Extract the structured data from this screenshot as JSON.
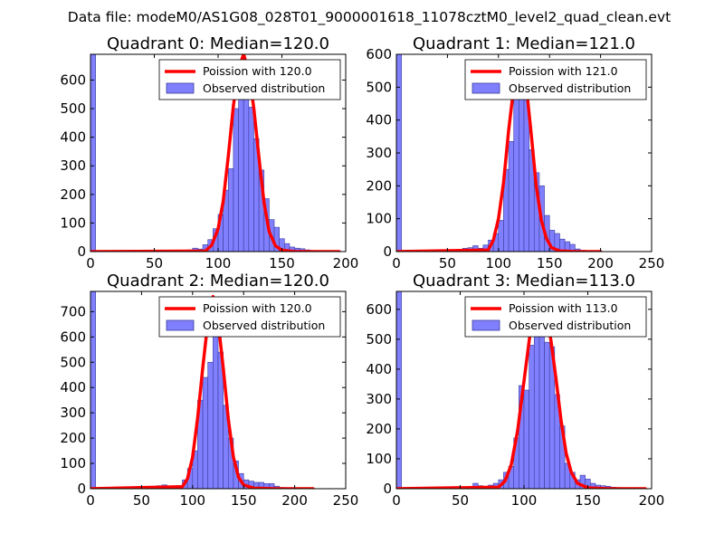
{
  "figure": {
    "suptitle": "Data file: modeM0/AS1G08_028T01_9000001618_11078cztM0_level2_quad_clean.evt"
  },
  "colors": {
    "bars_fill": "#8080ff",
    "bars_edge": "#3a3a9a",
    "curve": "#ff0000",
    "axes": "#000000",
    "background": "#ffffff"
  },
  "chart_data": [
    {
      "type": "bar",
      "title": "Quadrant 0: Median=120.0",
      "xlim": [
        0,
        200
      ],
      "ylim": [
        0,
        690
      ],
      "xticks": [
        0,
        50,
        100,
        150,
        200
      ],
      "yticks": [
        0,
        100,
        200,
        300,
        400,
        500,
        600
      ],
      "xtick_labels": [
        "0",
        "50",
        "100",
        "150",
        "200"
      ],
      "ytick_labels": [
        "0",
        "100",
        "200",
        "300",
        "400",
        "500",
        "600"
      ],
      "legend": {
        "position": "upper-right",
        "curve_label": "Poission with 120.0",
        "bars_label": "Observed distribution"
      },
      "bin_width": 4,
      "bins": [
        {
          "x": 0,
          "y": 690
        },
        {
          "x": 76,
          "y": 6
        },
        {
          "x": 80,
          "y": 12
        },
        {
          "x": 84,
          "y": 9
        },
        {
          "x": 88,
          "y": 24
        },
        {
          "x": 92,
          "y": 42
        },
        {
          "x": 96,
          "y": 80
        },
        {
          "x": 100,
          "y": 130
        },
        {
          "x": 104,
          "y": 215
        },
        {
          "x": 108,
          "y": 290
        },
        {
          "x": 112,
          "y": 500
        },
        {
          "x": 116,
          "y": 535
        },
        {
          "x": 120,
          "y": 560
        },
        {
          "x": 124,
          "y": 505
        },
        {
          "x": 128,
          "y": 395
        },
        {
          "x": 132,
          "y": 285
        },
        {
          "x": 136,
          "y": 185
        },
        {
          "x": 140,
          "y": 112
        },
        {
          "x": 144,
          "y": 85
        },
        {
          "x": 148,
          "y": 45
        },
        {
          "x": 152,
          "y": 28
        },
        {
          "x": 156,
          "y": 16
        },
        {
          "x": 160,
          "y": 12
        },
        {
          "x": 164,
          "y": 10
        },
        {
          "x": 168,
          "y": 6
        },
        {
          "x": 172,
          "y": 4
        }
      ],
      "curve": {
        "x": [
          0,
          90,
          95,
          100,
          104,
          108,
          112,
          116,
          120,
          124,
          128,
          132,
          136,
          140,
          145,
          150,
          160,
          175,
          195
        ],
        "y": [
          0,
          2,
          22,
          80,
          175,
          335,
          510,
          640,
          690,
          630,
          500,
          330,
          170,
          70,
          20,
          5,
          0,
          0,
          0
        ]
      }
    },
    {
      "type": "bar",
      "title": "Quadrant 1: Median=121.0",
      "xlim": [
        0,
        250
      ],
      "ylim": [
        0,
        600
      ],
      "xticks": [
        0,
        50,
        100,
        150,
        200,
        250
      ],
      "yticks": [
        0,
        100,
        200,
        300,
        400,
        500,
        600
      ],
      "xtick_labels": [
        "0",
        "50",
        "100",
        "150",
        "200",
        "250"
      ],
      "ytick_labels": [
        "0",
        "100",
        "200",
        "300",
        "400",
        "500",
        "600"
      ],
      "legend": {
        "position": "upper-right",
        "curve_label": "Poission with 121.0",
        "bars_label": "Observed distribution"
      },
      "bin_width": 5,
      "bins": [
        {
          "x": 0,
          "y": 600
        },
        {
          "x": 60,
          "y": 5
        },
        {
          "x": 65,
          "y": 10
        },
        {
          "x": 70,
          "y": 12
        },
        {
          "x": 75,
          "y": 18
        },
        {
          "x": 80,
          "y": 10
        },
        {
          "x": 85,
          "y": 20
        },
        {
          "x": 90,
          "y": 35
        },
        {
          "x": 95,
          "y": 55
        },
        {
          "x": 100,
          "y": 95
        },
        {
          "x": 105,
          "y": 250
        },
        {
          "x": 110,
          "y": 335
        },
        {
          "x": 115,
          "y": 525
        },
        {
          "x": 120,
          "y": 535
        },
        {
          "x": 125,
          "y": 520
        },
        {
          "x": 130,
          "y": 310
        },
        {
          "x": 135,
          "y": 240
        },
        {
          "x": 140,
          "y": 200
        },
        {
          "x": 145,
          "y": 110
        },
        {
          "x": 150,
          "y": 65
        },
        {
          "x": 155,
          "y": 55
        },
        {
          "x": 160,
          "y": 38
        },
        {
          "x": 165,
          "y": 30
        },
        {
          "x": 170,
          "y": 22
        },
        {
          "x": 175,
          "y": 8
        },
        {
          "x": 180,
          "y": 4
        }
      ],
      "curve": {
        "x": [
          0,
          90,
          95,
          100,
          105,
          110,
          115,
          121,
          127,
          132,
          137,
          142,
          147,
          152,
          160,
          175,
          200
        ],
        "y": [
          0,
          5,
          35,
          100,
          210,
          370,
          500,
          575,
          510,
          360,
          200,
          95,
          40,
          12,
          2,
          0,
          0
        ]
      }
    },
    {
      "type": "bar",
      "title": "Quadrant 2: Median=120.0",
      "xlim": [
        0,
        250
      ],
      "ylim": [
        0,
        780
      ],
      "xticks": [
        0,
        50,
        100,
        150,
        200,
        250
      ],
      "yticks": [
        0,
        100,
        200,
        300,
        400,
        500,
        600,
        700
      ],
      "xtick_labels": [
        "0",
        "50",
        "100",
        "150",
        "200",
        "250"
      ],
      "ytick_labels": [
        "0",
        "100",
        "200",
        "300",
        "400",
        "500",
        "600",
        "700"
      ],
      "legend": {
        "position": "upper-right",
        "curve_label": "Poission with 120.0",
        "bars_label": "Observed distribution"
      },
      "bin_width": 5,
      "bins": [
        {
          "x": 0,
          "y": 780
        },
        {
          "x": 65,
          "y": 12
        },
        {
          "x": 70,
          "y": 15
        },
        {
          "x": 75,
          "y": 10
        },
        {
          "x": 80,
          "y": 8
        },
        {
          "x": 85,
          "y": 12
        },
        {
          "x": 90,
          "y": 35
        },
        {
          "x": 95,
          "y": 80
        },
        {
          "x": 100,
          "y": 150
        },
        {
          "x": 105,
          "y": 350
        },
        {
          "x": 110,
          "y": 440
        },
        {
          "x": 115,
          "y": 500
        },
        {
          "x": 120,
          "y": 735
        },
        {
          "x": 125,
          "y": 540
        },
        {
          "x": 130,
          "y": 330
        },
        {
          "x": 135,
          "y": 200
        },
        {
          "x": 140,
          "y": 110
        },
        {
          "x": 145,
          "y": 60
        },
        {
          "x": 150,
          "y": 35
        },
        {
          "x": 155,
          "y": 30
        },
        {
          "x": 160,
          "y": 25
        },
        {
          "x": 165,
          "y": 25
        },
        {
          "x": 170,
          "y": 20
        },
        {
          "x": 175,
          "y": 20
        },
        {
          "x": 180,
          "y": 10
        },
        {
          "x": 185,
          "y": 5
        }
      ],
      "curve": {
        "x": [
          0,
          90,
          95,
          100,
          105,
          110,
          115,
          120,
          125,
          130,
          135,
          140,
          145,
          150,
          160,
          180,
          218
        ],
        "y": [
          0,
          8,
          40,
          125,
          280,
          480,
          660,
          760,
          660,
          480,
          275,
          125,
          45,
          15,
          2,
          0,
          0
        ]
      }
    },
    {
      "type": "bar",
      "title": "Quadrant 3: Median=113.0",
      "xlim": [
        0,
        200
      ],
      "ylim": [
        0,
        660
      ],
      "xticks": [
        0,
        50,
        100,
        150,
        200
      ],
      "yticks": [
        0,
        100,
        200,
        300,
        400,
        500,
        600
      ],
      "xtick_labels": [
        "0",
        "50",
        "100",
        "150",
        "200"
      ],
      "ytick_labels": [
        "0",
        "100",
        "200",
        "300",
        "400",
        "500",
        "600"
      ],
      "legend": {
        "position": "upper-right",
        "curve_label": "Poission with 113.0",
        "bars_label": "Observed distribution"
      },
      "bin_width": 4,
      "bins": [
        {
          "x": 0,
          "y": 660
        },
        {
          "x": 56,
          "y": 5
        },
        {
          "x": 60,
          "y": 18
        },
        {
          "x": 64,
          "y": 10
        },
        {
          "x": 68,
          "y": 8
        },
        {
          "x": 72,
          "y": 12
        },
        {
          "x": 76,
          "y": 18
        },
        {
          "x": 80,
          "y": 30
        },
        {
          "x": 84,
          "y": 55
        },
        {
          "x": 88,
          "y": 75
        },
        {
          "x": 92,
          "y": 170
        },
        {
          "x": 96,
          "y": 345
        },
        {
          "x": 100,
          "y": 330
        },
        {
          "x": 104,
          "y": 480
        },
        {
          "x": 108,
          "y": 555
        },
        {
          "x": 112,
          "y": 600
        },
        {
          "x": 116,
          "y": 490
        },
        {
          "x": 120,
          "y": 475
        },
        {
          "x": 124,
          "y": 315
        },
        {
          "x": 128,
          "y": 210
        },
        {
          "x": 132,
          "y": 85
        },
        {
          "x": 136,
          "y": 55
        },
        {
          "x": 140,
          "y": 30
        },
        {
          "x": 144,
          "y": 45
        },
        {
          "x": 148,
          "y": 32
        },
        {
          "x": 152,
          "y": 18
        },
        {
          "x": 156,
          "y": 12
        },
        {
          "x": 160,
          "y": 10
        },
        {
          "x": 164,
          "y": 8
        },
        {
          "x": 168,
          "y": 5
        },
        {
          "x": 172,
          "y": 4
        }
      ],
      "curve": {
        "x": [
          0,
          80,
          85,
          90,
          95,
          100,
          105,
          110,
          113,
          117,
          121,
          125,
          129,
          133,
          137,
          142,
          150,
          165,
          195
        ],
        "y": [
          0,
          5,
          25,
          80,
          195,
          360,
          525,
          610,
          625,
          590,
          500,
          370,
          230,
          120,
          55,
          18,
          3,
          0,
          0
        ]
      }
    }
  ]
}
